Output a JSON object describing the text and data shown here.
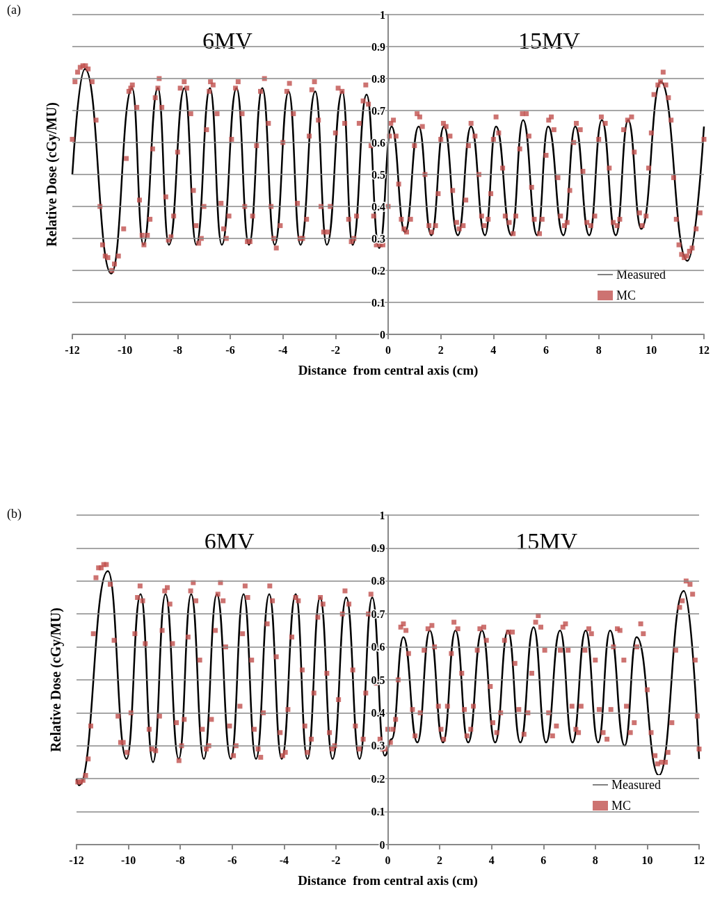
{
  "chart_data": [
    {
      "type": "line",
      "xlabel": "Distance  from central axis (cm)",
      "ylabel": "Relative Dose (cGy/MU)",
      "annotations": [
        "(a)",
        "6MV",
        "15MV"
      ],
      "xlim": [
        -12,
        12
      ],
      "xticks": [
        -12,
        -10,
        -8,
        -6,
        -4,
        -2,
        0,
        2,
        4,
        6,
        8,
        10,
        12
      ],
      "ylim": [
        0,
        1
      ],
      "yticks": [
        0,
        0.1,
        0.2,
        0.3,
        0.4,
        0.5,
        0.6,
        0.7,
        0.8,
        0.9,
        1
      ],
      "grid": "y",
      "legend": "bottom right",
      "series": [
        {
          "name": "Measured",
          "color": "#000000",
          "marker": "none",
          "x": [
            -12,
            -11.52,
            -10.52,
            -9.73,
            -9.3,
            -8.75,
            -8.33,
            -7.74,
            -7.29,
            -6.77,
            -6.32,
            -5.76,
            -5.29,
            -4.78,
            -4.31,
            -3.78,
            -3.33,
            -2.77,
            -2.33,
            -1.74,
            -1.35,
            -0.82,
            -0.34,
            0.13,
            0.64,
            1.16,
            1.64,
            2.12,
            2.65,
            3.15,
            3.68,
            4.1,
            4.68,
            5.13,
            5.66,
            6.08,
            6.66,
            7.11,
            7.64,
            8.12,
            8.65,
            9.12,
            9.62,
            10.36,
            11.37,
            12
          ],
          "values": [
            0.5,
            0.83,
            0.19,
            0.77,
            0.28,
            0.77,
            0.28,
            0.77,
            0.28,
            0.77,
            0.28,
            0.77,
            0.28,
            0.77,
            0.28,
            0.76,
            0.28,
            0.76,
            0.28,
            0.76,
            0.28,
            0.75,
            0.27,
            0.65,
            0.32,
            0.65,
            0.31,
            0.65,
            0.31,
            0.65,
            0.31,
            0.65,
            0.31,
            0.67,
            0.31,
            0.65,
            0.31,
            0.65,
            0.31,
            0.67,
            0.31,
            0.67,
            0.33,
            0.79,
            0.23,
            0.65
          ]
        },
        {
          "name": "MC",
          "type": "scatter",
          "color": "#c0504d",
          "marker": "square",
          "x": [
            -12,
            -11.9,
            -11.8,
            -11.7,
            -11.6,
            -11.5,
            -11.4,
            -11.25,
            -11.1,
            -10.95,
            -10.85,
            -10.75,
            -10.65,
            -10.5,
            -10.4,
            -10.25,
            -10.05,
            -9.95,
            -9.85,
            -9.78,
            -9.72,
            -9.55,
            -9.45,
            -9.35,
            -9.28,
            -9.15,
            -9.05,
            -8.95,
            -8.85,
            -8.75,
            -8.7,
            -8.6,
            -8.45,
            -8.35,
            -8.25,
            -8.15,
            -8,
            -7.9,
            -7.75,
            -7.65,
            -7.5,
            -7.4,
            -7.3,
            -7.2,
            -7.1,
            -7,
            -6.9,
            -6.8,
            -6.75,
            -6.65,
            -6.5,
            -6.35,
            -6.25,
            -6.15,
            -6.05,
            -5.95,
            -5.8,
            -5.7,
            -5.55,
            -5.45,
            -5.35,
            -5.25,
            -5.15,
            -5,
            -4.85,
            -4.7,
            -4.55,
            -4.45,
            -4.35,
            -4.25,
            -4.1,
            -4,
            -3.85,
            -3.75,
            -3.6,
            -3.45,
            -3.35,
            -3.25,
            -3.1,
            -3,
            -2.9,
            -2.8,
            -2.65,
            -2.55,
            -2.45,
            -2.3,
            -2.2,
            -2,
            -1.9,
            -1.75,
            -1.65,
            -1.5,
            -1.4,
            -1.3,
            -1.2,
            -1.1,
            -0.95,
            -0.85,
            -0.75,
            -0.65,
            -0.55,
            -0.45,
            -0.3,
            -0.2,
            0,
            0.05,
            0.1,
            0.2,
            0.3,
            0.4,
            0.5,
            0.6,
            0.7,
            0.85,
            1,
            1.1,
            1.2,
            1.3,
            1.4,
            1.55,
            1.65,
            1.8,
            1.9,
            2,
            2.1,
            2.2,
            2.35,
            2.45,
            2.6,
            2.7,
            2.85,
            2.95,
            3.05,
            3.15,
            3.3,
            3.45,
            3.55,
            3.65,
            3.8,
            3.9,
            4,
            4.1,
            4.2,
            4.35,
            4.45,
            4.6,
            4.75,
            4.85,
            5,
            5.1,
            5.25,
            5.35,
            5.45,
            5.55,
            5.75,
            5.85,
            6,
            6.1,
            6.2,
            6.3,
            6.45,
            6.55,
            6.7,
            6.8,
            6.9,
            7.05,
            7.15,
            7.3,
            7.4,
            7.55,
            7.7,
            7.85,
            8,
            8.1,
            8.25,
            8.4,
            8.55,
            8.7,
            8.8,
            8.95,
            9.1,
            9.25,
            9.35,
            9.55,
            9.65,
            9.8,
            9.9,
            10,
            10.1,
            10.25,
            10.35,
            10.45,
            10.55,
            10.65,
            10.75,
            10.85,
            10.95,
            11.05,
            11.15,
            11.25,
            11.35,
            11.45,
            11.55,
            11.7,
            11.85,
            12
          ],
          "values": [
            0.61,
            0.79,
            0.82,
            0.835,
            0.84,
            0.84,
            0.83,
            0.79,
            0.67,
            0.4,
            0.28,
            0.245,
            0.24,
            0.2,
            0.22,
            0.245,
            0.33,
            0.55,
            0.76,
            0.77,
            0.78,
            0.71,
            0.42,
            0.31,
            0.28,
            0.31,
            0.36,
            0.58,
            0.74,
            0.77,
            0.8,
            0.71,
            0.43,
            0.295,
            0.305,
            0.37,
            0.57,
            0.77,
            0.79,
            0.77,
            0.69,
            0.45,
            0.34,
            0.285,
            0.3,
            0.4,
            0.64,
            0.76,
            0.79,
            0.78,
            0.69,
            0.41,
            0.33,
            0.3,
            0.37,
            0.61,
            0.77,
            0.79,
            0.69,
            0.4,
            0.29,
            0.29,
            0.37,
            0.59,
            0.76,
            0.8,
            0.66,
            0.4,
            0.3,
            0.27,
            0.34,
            0.6,
            0.76,
            0.785,
            0.69,
            0.41,
            0.3,
            0.3,
            0.36,
            0.62,
            0.765,
            0.79,
            0.67,
            0.4,
            0.32,
            0.32,
            0.4,
            0.63,
            0.77,
            0.76,
            0.66,
            0.36,
            0.29,
            0.3,
            0.37,
            0.66,
            0.73,
            0.78,
            0.72,
            0.59,
            0.37,
            0.28,
            0.28,
            0.28,
            0.4,
            0.62,
            0.66,
            0.67,
            0.62,
            0.47,
            0.36,
            0.33,
            0.32,
            0.36,
            0.59,
            0.69,
            0.68,
            0.65,
            0.5,
            0.34,
            0.32,
            0.34,
            0.44,
            0.61,
            0.66,
            0.65,
            0.62,
            0.45,
            0.35,
            0.33,
            0.34,
            0.42,
            0.59,
            0.66,
            0.62,
            0.5,
            0.37,
            0.34,
            0.36,
            0.44,
            0.61,
            0.68,
            0.63,
            0.52,
            0.37,
            0.35,
            0.315,
            0.37,
            0.58,
            0.69,
            0.69,
            0.62,
            0.46,
            0.36,
            0.315,
            0.36,
            0.56,
            0.67,
            0.68,
            0.64,
            0.49,
            0.37,
            0.34,
            0.35,
            0.45,
            0.6,
            0.66,
            0.64,
            0.51,
            0.35,
            0.34,
            0.37,
            0.61,
            0.68,
            0.66,
            0.52,
            0.35,
            0.34,
            0.36,
            0.64,
            0.67,
            0.68,
            0.57,
            0.38,
            0.34,
            0.37,
            0.52,
            0.63,
            0.75,
            0.78,
            0.79,
            0.82,
            0.78,
            0.74,
            0.67,
            0.49,
            0.36,
            0.28,
            0.25,
            0.24,
            0.245,
            0.26,
            0.27,
            0.33,
            0.38,
            0.61
          ]
        }
      ]
    },
    {
      "type": "line",
      "xlabel": "Distance  from central axis (cm)",
      "ylabel": "Relative Dose (cGy/MU)",
      "annotations": [
        "(b)",
        "6MV",
        "15MV"
      ],
      "xlim": [
        -12,
        12
      ],
      "xticks": [
        -12,
        -10,
        -8,
        -6,
        -4,
        -2,
        0,
        2,
        4,
        6,
        8,
        10,
        12
      ],
      "ylim": [
        0,
        1
      ],
      "yticks": [
        0,
        0.1,
        0.2,
        0.3,
        0.4,
        0.5,
        0.6,
        0.7,
        0.8,
        0.9,
        1
      ],
      "grid": "y",
      "legend": "bottom right",
      "series": [
        {
          "name": "Measured",
          "color": "#000000",
          "marker": "none",
          "x": [
            -12,
            -11.9,
            -10.79,
            -10.07,
            -9.53,
            -9.05,
            -8.57,
            -8.06,
            -7.58,
            -7.09,
            -6.59,
            -6.05,
            -5.56,
            -5.08,
            -4.57,
            -4.09,
            -3.55,
            -3.1,
            -2.61,
            -2.13,
            -1.6,
            -1.09,
            -0.6,
            -0.12,
            0.15,
            0.6,
            1.14,
            1.62,
            2.13,
            2.61,
            3.1,
            3.63,
            4.14,
            4.63,
            5.11,
            5.62,
            6.1,
            6.64,
            7.12,
            7.63,
            8.11,
            8.57,
            9.13,
            9.59,
            10.45,
            11.41,
            12
          ],
          "values": [
            0.2,
            0.18,
            0.83,
            0.26,
            0.76,
            0.25,
            0.76,
            0.26,
            0.76,
            0.26,
            0.76,
            0.26,
            0.76,
            0.26,
            0.76,
            0.26,
            0.76,
            0.26,
            0.75,
            0.26,
            0.75,
            0.26,
            0.75,
            0.27,
            0.32,
            0.63,
            0.31,
            0.65,
            0.31,
            0.65,
            0.31,
            0.65,
            0.31,
            0.65,
            0.31,
            0.66,
            0.31,
            0.65,
            0.31,
            0.65,
            0.31,
            0.65,
            0.3,
            0.63,
            0.21,
            0.77,
            0.26
          ]
        },
        {
          "name": "MC",
          "type": "scatter",
          "color": "#c0504d",
          "marker": "square",
          "x": [
            -11.95,
            -11.85,
            -11.75,
            -11.65,
            -11.55,
            -11.45,
            -11.35,
            -11.25,
            -11.15,
            -11.05,
            -10.95,
            -10.85,
            -10.7,
            -10.55,
            -10.4,
            -10.3,
            -10.2,
            -10.05,
            -9.9,
            -9.75,
            -9.65,
            -9.55,
            -9.45,
            -9.35,
            -9.2,
            -9.1,
            -8.95,
            -8.8,
            -8.7,
            -8.6,
            -8.5,
            -8.4,
            -8.3,
            -8.15,
            -8.05,
            -7.95,
            -7.85,
            -7.7,
            -7.6,
            -7.5,
            -7.4,
            -7.25,
            -7.15,
            -7,
            -6.9,
            -6.8,
            -6.65,
            -6.55,
            -6.45,
            -6.35,
            -6.25,
            -6.1,
            -5.95,
            -5.85,
            -5.7,
            -5.6,
            -5.5,
            -5.4,
            -5.25,
            -5.15,
            -5,
            -4.9,
            -4.8,
            -4.65,
            -4.55,
            -4.45,
            -4.3,
            -4.15,
            -4.05,
            -3.95,
            -3.85,
            -3.7,
            -3.55,
            -3.45,
            -3.3,
            -3.2,
            -3.1,
            -2.95,
            -2.85,
            -2.7,
            -2.6,
            -2.5,
            -2.35,
            -2.25,
            -2.15,
            -2.05,
            -1.9,
            -1.75,
            -1.65,
            -1.5,
            -1.35,
            -1.25,
            -1.1,
            -0.95,
            -0.85,
            -0.75,
            -0.65,
            -0.45,
            -0.3,
            -0.2,
            -0.1,
            0,
            0.1,
            0.2,
            0.3,
            0.4,
            0.5,
            0.6,
            0.7,
            0.8,
            0.95,
            1.05,
            1.25,
            1.4,
            1.55,
            1.7,
            1.8,
            1.95,
            2.05,
            2.15,
            2.3,
            2.45,
            2.55,
            2.7,
            2.85,
            2.95,
            3.05,
            3.2,
            3.3,
            3.45,
            3.55,
            3.7,
            3.8,
            3.95,
            4.05,
            4.2,
            4.35,
            4.5,
            4.65,
            4.8,
            4.9,
            5.05,
            5.25,
            5.4,
            5.55,
            5.7,
            5.8,
            5.9,
            6.05,
            6.2,
            6.35,
            6.5,
            6.65,
            6.75,
            6.85,
            6.95,
            7.1,
            7.25,
            7.35,
            7.45,
            7.6,
            7.75,
            7.85,
            8,
            8.15,
            8.3,
            8.45,
            8.6,
            8.7,
            8.85,
            8.95,
            9.1,
            9.2,
            9.35,
            9.5,
            9.6,
            9.75,
            9.85,
            10,
            10.15,
            10.3,
            10.4,
            10.55,
            10.7,
            10.8,
            10.95,
            11.1,
            11.25,
            11.35,
            11.5,
            11.65,
            11.75,
            11.85,
            11.93,
            12
          ],
          "values": [
            0.19,
            0.19,
            0.195,
            0.21,
            0.26,
            0.36,
            0.64,
            0.81,
            0.84,
            0.84,
            0.85,
            0.85,
            0.79,
            0.62,
            0.39,
            0.31,
            0.31,
            0.28,
            0.4,
            0.64,
            0.75,
            0.785,
            0.74,
            0.61,
            0.35,
            0.29,
            0.285,
            0.39,
            0.65,
            0.77,
            0.78,
            0.73,
            0.61,
            0.37,
            0.255,
            0.3,
            0.38,
            0.63,
            0.77,
            0.795,
            0.74,
            0.56,
            0.35,
            0.29,
            0.3,
            0.38,
            0.65,
            0.76,
            0.795,
            0.74,
            0.6,
            0.36,
            0.27,
            0.3,
            0.42,
            0.64,
            0.785,
            0.75,
            0.56,
            0.35,
            0.29,
            0.265,
            0.4,
            0.67,
            0.785,
            0.74,
            0.57,
            0.34,
            0.27,
            0.28,
            0.41,
            0.63,
            0.75,
            0.74,
            0.53,
            0.36,
            0.28,
            0.32,
            0.46,
            0.69,
            0.75,
            0.73,
            0.52,
            0.34,
            0.29,
            0.3,
            0.44,
            0.7,
            0.77,
            0.73,
            0.53,
            0.36,
            0.29,
            0.32,
            0.46,
            0.7,
            0.76,
            0.49,
            0.32,
            0.29,
            0.29,
            0.35,
            0.31,
            0.35,
            0.38,
            0.5,
            0.66,
            0.67,
            0.65,
            0.58,
            0.41,
            0.33,
            0.4,
            0.59,
            0.655,
            0.665,
            0.6,
            0.42,
            0.35,
            0.32,
            0.42,
            0.58,
            0.675,
            0.655,
            0.52,
            0.41,
            0.33,
            0.35,
            0.42,
            0.59,
            0.655,
            0.66,
            0.62,
            0.48,
            0.37,
            0.34,
            0.4,
            0.62,
            0.645,
            0.645,
            0.55,
            0.41,
            0.335,
            0.4,
            0.52,
            0.675,
            0.695,
            0.66,
            0.59,
            0.4,
            0.33,
            0.36,
            0.59,
            0.66,
            0.67,
            0.59,
            0.42,
            0.35,
            0.34,
            0.42,
            0.59,
            0.655,
            0.64,
            0.56,
            0.41,
            0.34,
            0.32,
            0.41,
            0.6,
            0.655,
            0.65,
            0.56,
            0.42,
            0.34,
            0.37,
            0.6,
            0.67,
            0.64,
            0.47,
            0.34,
            0.27,
            0.245,
            0.25,
            0.25,
            0.28,
            0.37,
            0.59,
            0.72,
            0.74,
            0.8,
            0.79,
            0.76,
            0.56,
            0.39,
            0.29
          ]
        }
      ]
    }
  ]
}
